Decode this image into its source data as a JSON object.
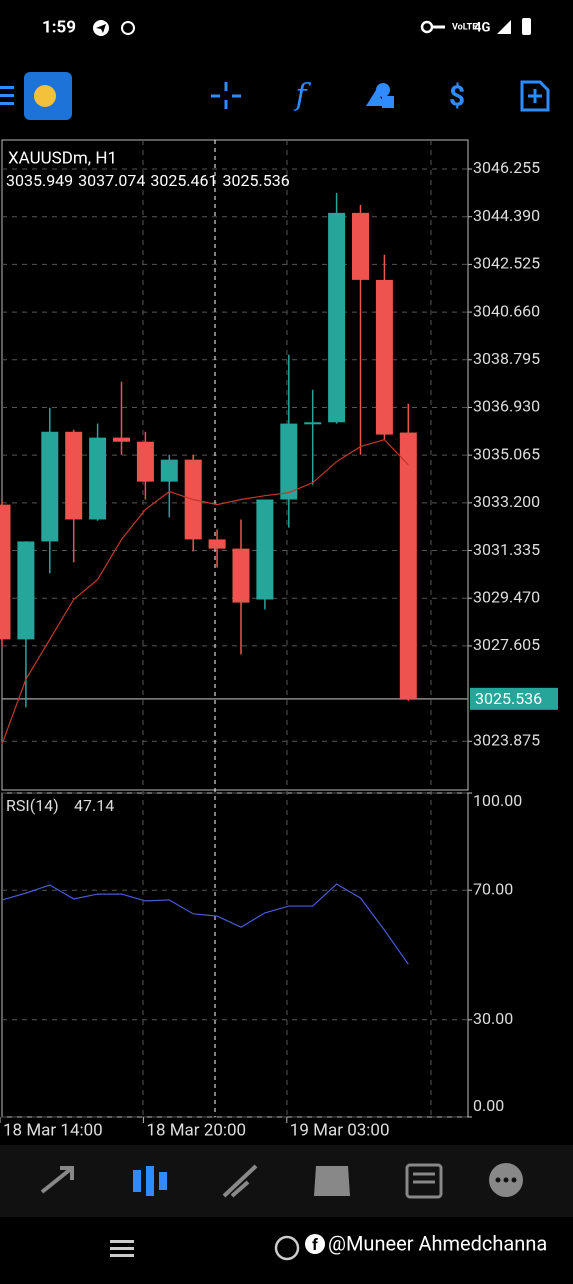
{
  "status_bar": {
    "time": "1:59",
    "network": "4G"
  },
  "chart_data": [
    {
      "type": "candlestick",
      "title": "XAUUSDm, H1",
      "ohlc_info": [
        3035.949,
        3037.074,
        3025.461,
        3025.536
      ],
      "categories": [
        "18 Mar 14:00",
        null,
        null,
        null,
        null,
        null,
        "18 Mar 20:00",
        null,
        null,
        null,
        null,
        null,
        "19 Mar 03:00",
        null,
        null,
        null,
        null,
        null
      ],
      "open": [
        3033.13,
        3027.86,
        3031.69,
        3035.98,
        3032.55,
        3035.75,
        3035.59,
        3034.03,
        3034.89,
        3031.77,
        3031.41,
        3029.42,
        3033.33,
        3036.3,
        3036.35,
        3044.54,
        3041.92,
        3035.949
      ],
      "high": [
        3033.3,
        3031.7,
        3036.92,
        3036.06,
        3036.3,
        3037.94,
        3035.98,
        3035.08,
        3035.08,
        3032.16,
        3032.55,
        3033.33,
        3038.99,
        3037.62,
        3045.32,
        3044.85,
        3042.9,
        3037.074
      ],
      "low": [
        3027.6,
        3025.2,
        3030.44,
        3030.87,
        3032.5,
        3035.08,
        3033.33,
        3032.63,
        3031.3,
        3030.67,
        3027.27,
        3029.03,
        3032.23,
        3033.91,
        3036.3,
        3035.08,
        3035.67,
        3025.461
      ],
      "close": [
        3027.86,
        3031.69,
        3035.98,
        3032.55,
        3035.75,
        3035.59,
        3034.03,
        3034.89,
        3031.77,
        3031.41,
        3029.3,
        3033.33,
        3036.3,
        3036.35,
        3044.54,
        3041.92,
        3035.87,
        3025.536
      ],
      "up_color": "#26a69a",
      "down_color": "#ef5350",
      "series": [
        {
          "color": "#c0392b",
          "values": [
            3023.76,
            3026.3,
            3027.86,
            3029.42,
            3030.2,
            3031.77,
            3032.94,
            3033.64,
            3033.33,
            3033.13,
            3033.33,
            3033.48,
            3033.6,
            3033.99,
            3034.81,
            3035.4,
            3035.67,
            3034.69
          ]
        }
      ],
      "last_price": 3025.536,
      "ylim": [
        3021.97,
        3047.39
      ],
      "yticks": [
        3046.255,
        {
          "value": 3044.39,
          "label": "3044.390"
        },
        3042.525,
        {
          "value": 3040.66,
          "label": "3040.660"
        },
        3038.795,
        {
          "value": 3036.93,
          "label": "3036.930"
        },
        3035.065,
        {
          "value": 3033.2,
          "label": "3033.200"
        },
        3031.335,
        {
          "value": 3029.47,
          "label": "3029.470"
        },
        3027.605,
        3023.875
      ],
      "grid": true
    },
    {
      "type": "line",
      "title": "RSI(14)",
      "series": [
        {
          "color": "#4a5bd4",
          "values": [
            67.0,
            69.1,
            71.6,
            67.3,
            68.8,
            68.8,
            66.7,
            67.0,
            62.7,
            62.0,
            58.6,
            63.0,
            65.1,
            65.1,
            71.9,
            67.6,
            57.7,
            47.14
          ]
        }
      ],
      "ylim": [
        0,
        100
      ],
      "yticks": [
        {
          "value": 0,
          "label": "0.00"
        },
        {
          "value": 30,
          "label": "30.00"
        },
        {
          "value": 70,
          "label": "70.00"
        },
        {
          "value": 100,
          "label": "100.00"
        }
      ],
      "grid": true
    }
  ],
  "watermark": "@Muneer Ahmedchanna"
}
